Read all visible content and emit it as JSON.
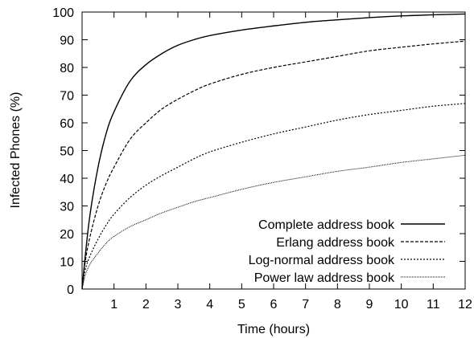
{
  "chart_data": {
    "type": "line",
    "xlabel": "Time (hours)",
    "ylabel": "Infected Phones (%)",
    "xlim": [
      0,
      12
    ],
    "ylim": [
      0,
      100
    ],
    "x_ticks": [
      1,
      2,
      3,
      4,
      5,
      6,
      7,
      8,
      9,
      10,
      11,
      12
    ],
    "y_ticks": [
      0,
      10,
      20,
      30,
      40,
      50,
      60,
      70,
      80,
      90,
      100
    ],
    "legend_position": "bottom-right",
    "grid": false,
    "series": [
      {
        "name": "Complete address book",
        "line_style": "solid",
        "x": [
          0,
          0.1,
          0.25,
          0.5,
          0.75,
          1,
          1.5,
          2,
          2.5,
          3,
          3.5,
          4,
          5,
          6,
          7,
          8,
          9,
          10,
          11,
          12
        ],
        "values": [
          0,
          12,
          27,
          44,
          56,
          64,
          75,
          81,
          85,
          88,
          90,
          91.5,
          93.5,
          95,
          96.3,
          97.2,
          98,
          98.6,
          99,
          99.3
        ]
      },
      {
        "name": "Erlang address book",
        "line_style": "dashed",
        "x": [
          0,
          0.1,
          0.25,
          0.5,
          0.75,
          1,
          1.5,
          2,
          2.5,
          3,
          3.5,
          4,
          5,
          6,
          7,
          8,
          9,
          10,
          11,
          12
        ],
        "values": [
          0,
          10,
          19,
          30,
          38,
          44,
          54,
          60,
          65,
          68.5,
          71.5,
          74,
          77.5,
          80,
          82,
          84,
          86,
          87.3,
          88.5,
          89.5
        ]
      },
      {
        "name": "Log-normal address book",
        "line_style": "dotted",
        "x": [
          0,
          0.1,
          0.25,
          0.5,
          0.75,
          1,
          1.5,
          2,
          2.5,
          3,
          3.5,
          4,
          5,
          6,
          7,
          8,
          9,
          10,
          11,
          12
        ],
        "values": [
          0,
          7,
          12,
          18,
          23,
          27,
          33,
          37.5,
          41,
          44,
          47,
          49.5,
          53,
          56,
          58.5,
          61,
          63,
          64.5,
          66,
          67
        ]
      },
      {
        "name": "Power law address book",
        "line_style": "fine-dotted",
        "x": [
          0,
          0.1,
          0.25,
          0.5,
          0.75,
          1,
          1.5,
          2,
          2.5,
          3,
          3.5,
          4,
          5,
          6,
          7,
          8,
          9,
          10,
          11,
          12
        ],
        "values": [
          0,
          5,
          9,
          13,
          16.5,
          19,
          22.5,
          25,
          27.5,
          29.5,
          31.5,
          33,
          36,
          38.5,
          40.5,
          42.5,
          44,
          45.7,
          47,
          48.3
        ]
      }
    ]
  }
}
